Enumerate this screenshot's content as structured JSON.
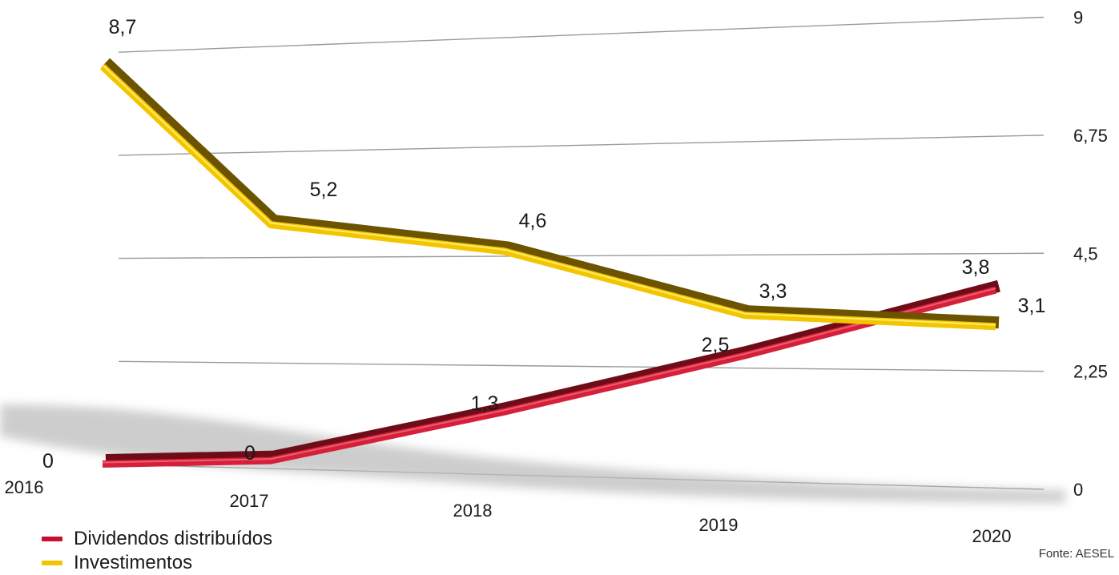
{
  "chart_data": {
    "type": "line",
    "categories": [
      "2016",
      "2017",
      "2018",
      "2019",
      "2020"
    ],
    "series": [
      {
        "name": "Dividendos distribuídos",
        "color": "#c8102e",
        "values": [
          0,
          0,
          1.3,
          2.5,
          3.8
        ],
        "labels": [
          "0",
          "0",
          "1,3",
          "2,5",
          "3,8"
        ]
      },
      {
        "name": "Investimentos",
        "color": "#f2c500",
        "values": [
          8.7,
          5.2,
          4.6,
          3.3,
          3.1
        ],
        "labels": [
          "8,7",
          "5,2",
          "4,6",
          "3,3",
          "3,1"
        ]
      }
    ],
    "yticks": [
      0,
      2.25,
      4.5,
      6.75,
      9
    ],
    "ytick_labels": [
      "0",
      "2,25",
      "4,5",
      "6,75",
      "9"
    ],
    "ylim": [
      0,
      9
    ],
    "grid": true,
    "legend_position": "bottom-left",
    "style": "3d-perspective"
  },
  "source": "Fonte: AESEL"
}
